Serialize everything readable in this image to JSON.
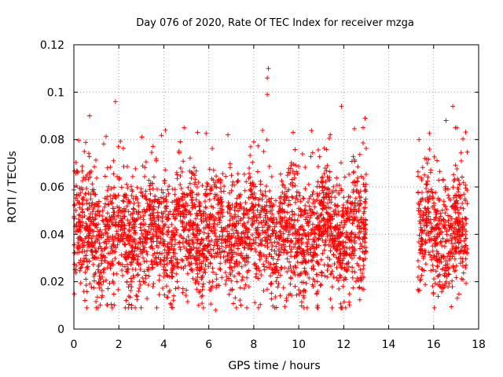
{
  "chart_data": {
    "type": "scatter",
    "title": "Day 076 of 2020, Rate Of TEC Index for receiver mzga",
    "xlabel": "GPS time / hours",
    "ylabel": "ROTI / TECUs",
    "xlim": [
      0,
      18
    ],
    "ylim": [
      0,
      0.12
    ],
    "x_ticks": [
      "0",
      "2",
      "4",
      "6",
      "8",
      "10",
      "12",
      "14",
      "16",
      "18"
    ],
    "y_ticks": [
      "0",
      "0.02",
      "0.04",
      "0.06",
      "0.08",
      "0.1",
      "0.12"
    ],
    "grid": true,
    "marker": "+",
    "color": "#ff0000",
    "observation_windows_hours": [
      [
        0.0,
        13.0
      ],
      [
        15.3,
        17.5
      ]
    ],
    "typical_range": [
      0.015,
      0.065
    ],
    "series": [
      {
        "name": "ROTI",
        "notable_points": [
          {
            "x": 8.65,
            "y": 0.11
          },
          {
            "x": 8.6,
            "y": 0.106
          },
          {
            "x": 8.6,
            "y": 0.099
          },
          {
            "x": 1.85,
            "y": 0.096
          },
          {
            "x": 11.9,
            "y": 0.094
          },
          {
            "x": 16.85,
            "y": 0.094
          },
          {
            "x": 0.7,
            "y": 0.09
          },
          {
            "x": 12.95,
            "y": 0.089
          },
          {
            "x": 16.55,
            "y": 0.088
          },
          {
            "x": 5.5,
            "y": 0.083
          },
          {
            "x": 9.75,
            "y": 0.083
          },
          {
            "x": 6.85,
            "y": 0.082
          },
          {
            "x": 11.4,
            "y": 0.082
          },
          {
            "x": 15.35,
            "y": 0.08
          },
          {
            "x": 5.55,
            "y": 0.01
          },
          {
            "x": 6.3,
            "y": 0.008
          },
          {
            "x": 9.45,
            "y": 0.012
          },
          {
            "x": 17.05,
            "y": 0.013
          }
        ]
      }
    ]
  }
}
